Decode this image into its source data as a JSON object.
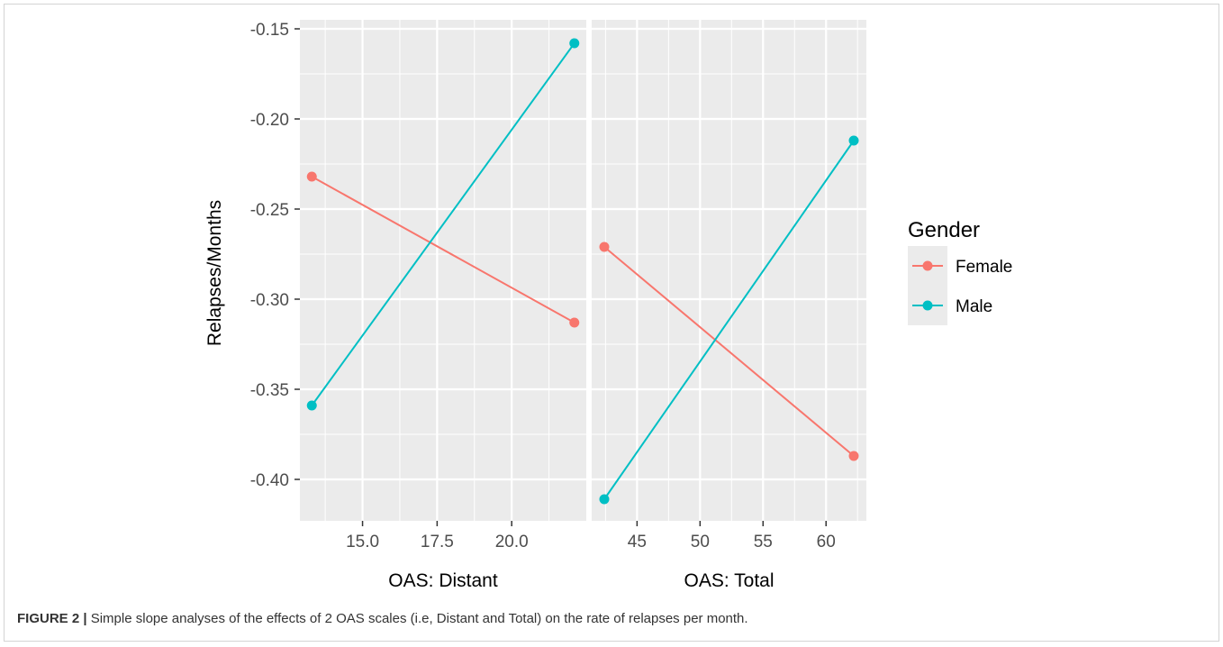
{
  "chart_data": {
    "type": "line",
    "ylabel": "Relapses/Months",
    "ylim": [
      -0.423,
      -0.145
    ],
    "yticks": [
      -0.15,
      -0.2,
      -0.25,
      -0.3,
      -0.35,
      -0.4
    ],
    "ytick_labels": [
      "-0.15",
      "-0.20",
      "-0.25",
      "-0.30",
      "-0.35",
      "-0.40"
    ],
    "grid": true,
    "legend": {
      "title": "Gender",
      "position": "right",
      "entries": [
        "Female",
        "Male"
      ]
    },
    "colors": {
      "Female": "#F8766D",
      "Male": "#00BFC4",
      "panel_bg": "#EBEBEB",
      "grid": "#FFFFFF"
    },
    "panels": [
      {
        "xlabel": "OAS: Distant",
        "xlim": [
          12.9,
          22.5
        ],
        "xticks": [
          15.0,
          17.5,
          20.0
        ],
        "xtick_labels": [
          "15.0",
          "17.5",
          "20.0"
        ],
        "x": [
          13.3,
          22.1
        ],
        "series": [
          {
            "name": "Female",
            "values": [
              -0.232,
              -0.313
            ]
          },
          {
            "name": "Male",
            "values": [
              -0.359,
              -0.158
            ]
          }
        ]
      },
      {
        "xlabel": "OAS: Total",
        "xlim": [
          41.4,
          63.2
        ],
        "xticks": [
          45,
          50,
          55,
          60
        ],
        "xtick_labels": [
          "45",
          "50",
          "55",
          "60"
        ],
        "x": [
          42.4,
          62.2
        ],
        "series": [
          {
            "name": "Female",
            "values": [
              -0.271,
              -0.387
            ]
          },
          {
            "name": "Male",
            "values": [
              -0.411,
              -0.212
            ]
          }
        ]
      }
    ]
  },
  "caption": {
    "label": "FIGURE 2 |",
    "text": " Simple slope analyses of the effects of 2 OAS scales (i.e, Distant and Total) on the rate of relapses per month."
  }
}
